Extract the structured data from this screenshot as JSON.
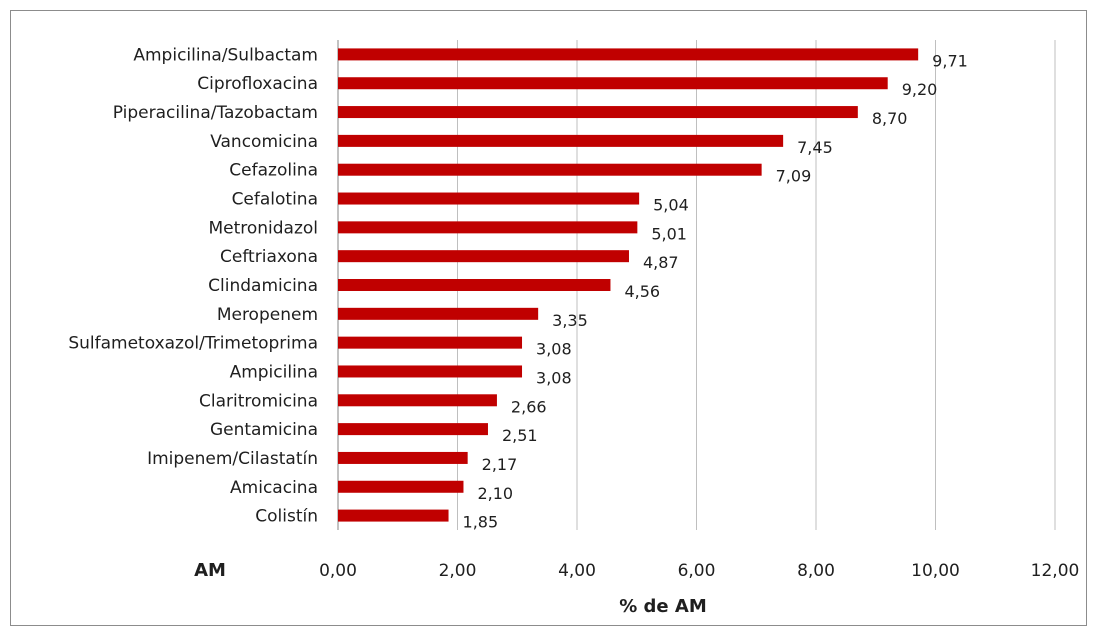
{
  "chart_data": {
    "type": "bar",
    "orientation": "horizontal",
    "categories": [
      "Ampicilina/Sulbactam",
      "Ciprofloxacina",
      "Piperacilina/Tazobactam",
      "Vancomicina",
      "Cefazolina",
      "Cefalotina",
      "Metronidazol",
      "Ceftriaxona",
      "Clindamicina",
      "Meropenem",
      "Sulfametoxazol/Trimetoprima",
      "Ampicilina",
      "Claritromicina",
      "Gentamicina",
      "Imipenem/Cilastatín",
      "Amicacina",
      "Colistín"
    ],
    "values": [
      9.71,
      9.2,
      8.7,
      7.45,
      7.09,
      5.04,
      5.01,
      4.87,
      4.56,
      3.35,
      3.08,
      3.08,
      2.66,
      2.51,
      2.17,
      2.1,
      1.85
    ],
    "data_labels": [
      "9,71",
      "9,20",
      "8,70",
      "7,45",
      "7,09",
      "5,04",
      "5,01",
      "4,87",
      "4,56",
      "3,35",
      "3,08",
      "3,08",
      "2,66",
      "2,51",
      "2,17",
      "2,10",
      "1,85"
    ],
    "xticks": [
      "0,00",
      "2,00",
      "4,00",
      "6,00",
      "8,00",
      "10,00",
      "12,00"
    ],
    "xlim": [
      0,
      12
    ],
    "xlabel": "% de AM",
    "ylabel": "AM",
    "grid": "vertical",
    "bar_color": "#c00000"
  }
}
